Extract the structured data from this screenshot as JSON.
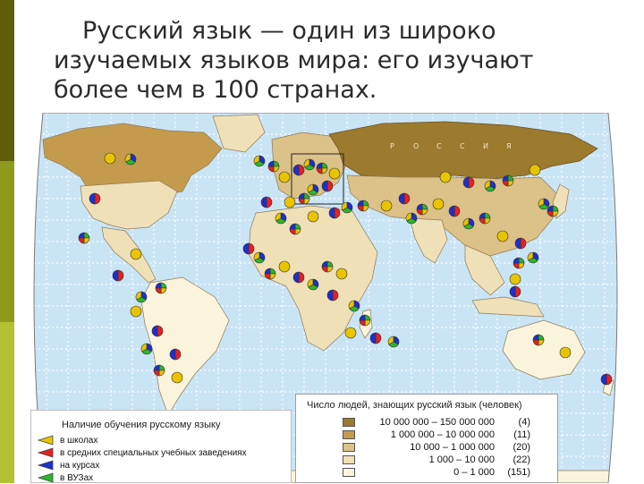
{
  "sidebar": {
    "colors": [
      "#5d5d0a",
      "#8e9a1d",
      "#b2c232"
    ]
  },
  "slide": {
    "title_lines": [
      "Русский язык — один из широко",
      "изучаемых языков мира: его изучают",
      "более чем в 100 странах."
    ]
  },
  "map": {
    "ocean_color": "#c9e4f5",
    "grid_color": "#ffffff",
    "russia_label_letters": [
      "Р",
      "О",
      "С",
      "С",
      "И",
      "Я"
    ],
    "category_colors": {
      "schools": "#e8c400",
      "secondary": "#e52020",
      "courses": "#1c2fcf",
      "universities": "#2bb52b"
    }
  },
  "legend_teaching": {
    "title": "Наличие обучения русскому языку",
    "items": [
      {
        "label": "в школах",
        "color": "#e8c400"
      },
      {
        "label": "в средних специальных учебных заведениях",
        "color": "#e52020"
      },
      {
        "label": "на курсах",
        "color": "#1c2fcf"
      },
      {
        "label": "в ВУЗах",
        "color": "#2bb52b"
      }
    ]
  },
  "legend_speakers": {
    "title": "Число людей, знающих русский язык (человек)",
    "rows": [
      {
        "range": "10 000 000 – 150 000 000",
        "count": "(4)",
        "color": "#9c7a2e"
      },
      {
        "range": "1 000 000 – 10 000 000",
        "count": "(11)",
        "color": "#c49b4d"
      },
      {
        "range": "10 000 – 1 000 000",
        "count": "(20)",
        "color": "#dcc188"
      },
      {
        "range": "1 000 – 10 000",
        "count": "(22)",
        "color": "#efe0b8"
      },
      {
        "range": "0 – 1 000",
        "count": "(151)",
        "color": "#fbf4dc"
      }
    ]
  }
}
